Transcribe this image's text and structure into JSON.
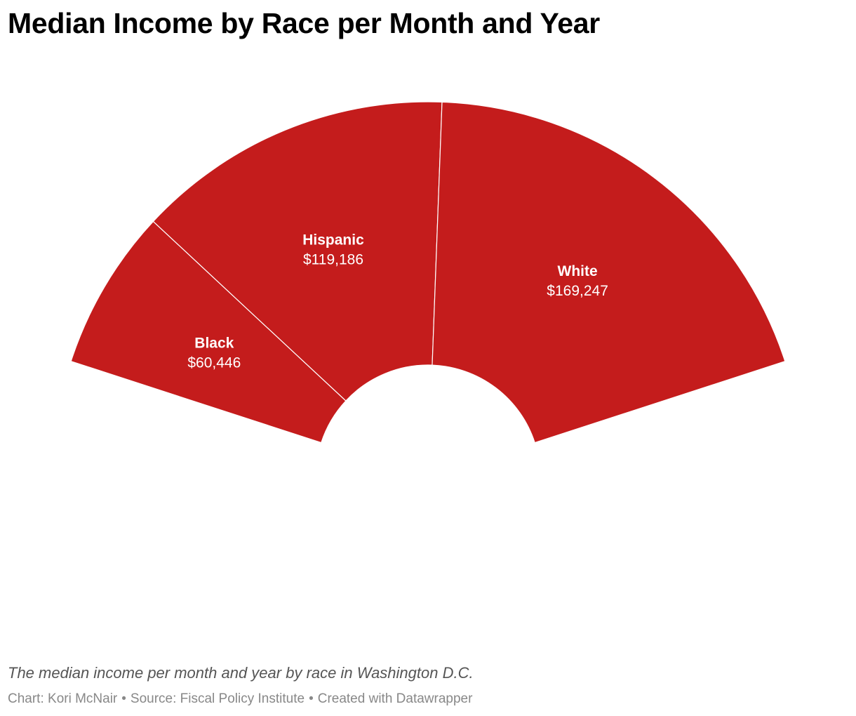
{
  "title": "Median Income by Race per Month and Year",
  "description": "The median income per month and year by race in Washington D.C.",
  "footer": {
    "chart_credit": "Chart: Kori McNair",
    "source": "Source: Fiscal Policy Institute",
    "created_with": "Created with Datawrapper",
    "separator": "•"
  },
  "colors": {
    "slice_fill": "#c41c1c",
    "slice_border": "#ffffff",
    "label_text": "#ffffff"
  },
  "chart_data": {
    "type": "pie",
    "subtype": "semi-donut",
    "categories": [
      "Black",
      "Hispanic",
      "White"
    ],
    "values": [
      60446,
      119186,
      169247
    ],
    "value_labels": [
      "$60,446",
      "$119,186",
      "$169,247"
    ],
    "title": "Median Income by Race per Month and Year",
    "legend": "none",
    "labels_on_slices": true
  }
}
